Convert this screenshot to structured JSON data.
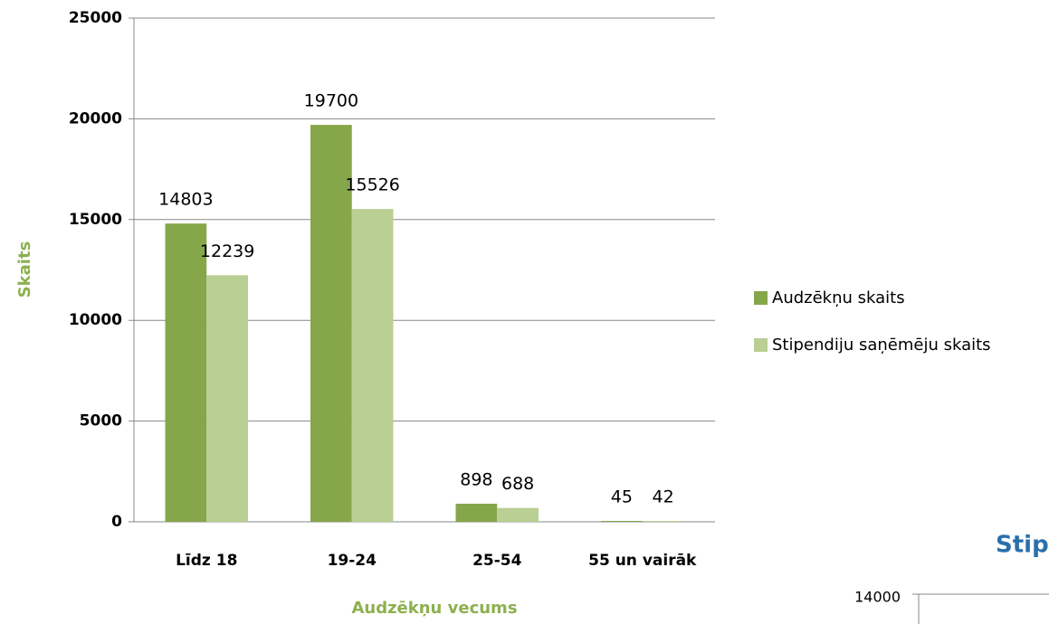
{
  "chart_data": [
    {
      "type": "bar",
      "categories": [
        "Līdz 18",
        "19-24",
        "25-54",
        "55 un vairāk"
      ],
      "series": [
        {
          "name": "Audzēkņu skaits",
          "color": "#86a64a",
          "values": [
            14803,
            19700,
            898,
            45
          ]
        },
        {
          "name": "Stipendiju saņēmēju skaits",
          "color": "#b9cf93",
          "values": [
            12239,
            15526,
            688,
            42
          ]
        }
      ],
      "x_label": "Audzēkņu vecums",
      "y_label": "Skaits",
      "ylim": [
        0,
        25000
      ],
      "yticks": [
        0,
        5000,
        10000,
        15000,
        20000,
        25000
      ],
      "grid": true,
      "legend": "right"
    },
    {
      "type": "bar",
      "title": "Stip",
      "yticks": [
        14000
      ]
    }
  ]
}
